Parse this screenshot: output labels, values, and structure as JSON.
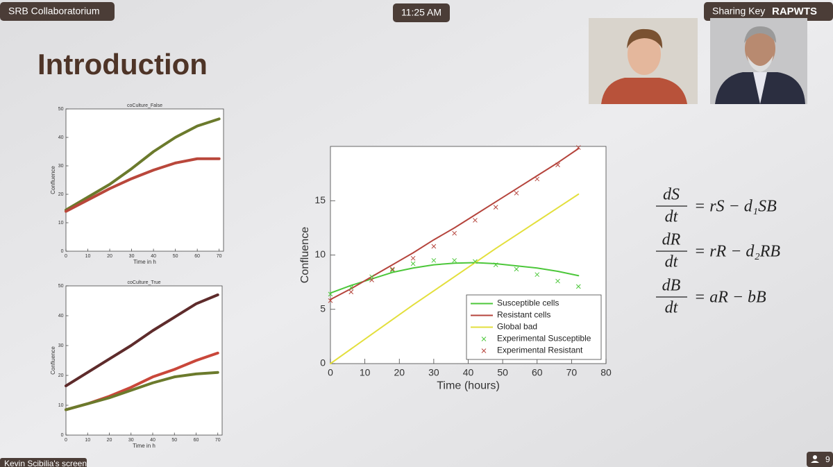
{
  "header": {
    "app_name": "SRB Collaboratorium",
    "time": "11:25 AM",
    "sharing_key_label": "Sharing Key",
    "sharing_key": "RAPWTS"
  },
  "slide": {
    "title": "Introduction",
    "charts": [
      {
        "type": "line",
        "title": "coCulture_False",
        "x_label": "Time in h",
        "y_label": "Confluence",
        "xlim": [
          0,
          72
        ],
        "ylim": [
          0,
          50
        ],
        "xticks": [
          0,
          10,
          20,
          30,
          40,
          50,
          60,
          70
        ],
        "yticks": [
          0,
          10,
          20,
          30,
          40,
          50
        ],
        "x": [
          0,
          10,
          20,
          30,
          40,
          50,
          60,
          70
        ],
        "series": [
          {
            "color": "#6b7a2c",
            "values": [
              14.5,
              19,
              23.5,
              29,
              35,
              40,
              44,
              46.5
            ]
          },
          {
            "color": "#b9473b",
            "values": [
              14,
              18,
              22,
              25.5,
              28.5,
              31,
              32.5,
              32.5
            ]
          }
        ]
      },
      {
        "type": "line",
        "title": "coCulture_True",
        "x_label": "Time in h",
        "y_label": "Confluence",
        "xlim": [
          0,
          72
        ],
        "ylim": [
          0,
          50
        ],
        "xticks": [
          0,
          10,
          20,
          30,
          40,
          50,
          60,
          70
        ],
        "yticks": [
          0,
          10,
          20,
          30,
          40,
          50
        ],
        "x": [
          0,
          10,
          20,
          30,
          40,
          50,
          60,
          70
        ],
        "series": [
          {
            "color": "#5e2b2b",
            "values": [
              16.5,
              21,
              25.5,
              30,
              35,
              39.5,
              44,
              47
            ]
          },
          {
            "color": "#c9473a",
            "values": [
              8.5,
              10.5,
              13,
              16,
              19.5,
              22,
              25,
              27.5
            ]
          },
          {
            "color": "#6b7a2c",
            "values": [
              8.5,
              10.5,
              12.5,
              15,
              17.5,
              19.5,
              20.5,
              21
            ]
          }
        ]
      },
      {
        "type": "line",
        "x_label": "Time (hours)",
        "y_label": "Confluence",
        "xlim": [
          0,
          80
        ],
        "ylim": [
          0,
          20
        ],
        "xticks": [
          0,
          10,
          20,
          30,
          40,
          50,
          60,
          70,
          80
        ],
        "yticks": [
          0,
          5,
          10,
          15
        ],
        "x": [
          0,
          6,
          12,
          18,
          24,
          30,
          36,
          42,
          48,
          54,
          60,
          66,
          72
        ],
        "legend": "lower right",
        "series": [
          {
            "name": "Susceptible cells",
            "color": "#4cc73a",
            "mode": "line",
            "values": [
              6.5,
              7.2,
              7.8,
              8.4,
              8.8,
              9.1,
              9.25,
              9.3,
              9.2,
              9.0,
              8.8,
              8.5,
              8.1
            ]
          },
          {
            "name": "Resistant cells",
            "color": "#b5443c",
            "mode": "line",
            "values": [
              5.9,
              6.9,
              8.0,
              9.1,
              10.2,
              11.4,
              12.5,
              13.7,
              14.9,
              16.1,
              17.3,
              18.5,
              19.8
            ]
          },
          {
            "name": "Global bad",
            "color": "#e3df3c",
            "mode": "line",
            "values": [
              0,
              1.35,
              2.7,
              4.05,
              5.4,
              6.7,
              8.0,
              9.3,
              10.6,
              11.85,
              13.1,
              14.35,
              15.6
            ]
          },
          {
            "name": "Experimental Susceptible",
            "color": "#4cc73a",
            "mode": "markers",
            "values": [
              6.4,
              7.0,
              8.0,
              8.6,
              9.2,
              9.5,
              9.5,
              9.4,
              9.1,
              8.7,
              8.2,
              7.6,
              7.1
            ]
          },
          {
            "name": "Experimental Resistant",
            "color": "#b5443c",
            "mode": "markers",
            "values": [
              5.8,
              6.6,
              7.7,
              8.7,
              9.7,
              10.8,
              12.0,
              13.2,
              14.4,
              15.7,
              17.0,
              18.3,
              19.9
            ]
          }
        ]
      }
    ],
    "equations": [
      {
        "numerator": "dS",
        "denominator": "dt",
        "rhs": "= rS − d₁SB"
      },
      {
        "numerator": "dR",
        "denominator": "dt",
        "rhs": "= rR − d₂RB"
      },
      {
        "numerator": "dB",
        "denominator": "dt",
        "rhs": "= aR − bB"
      }
    ]
  },
  "footer": {
    "screen_owner": "Kevin Scibilia's screen",
    "participants": 9
  }
}
